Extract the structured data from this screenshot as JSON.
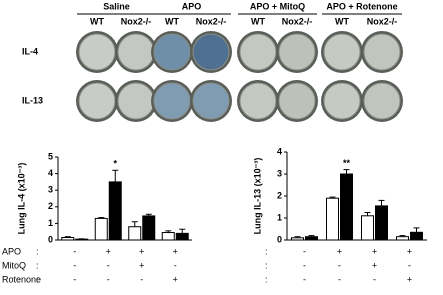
{
  "wells": {
    "groups": [
      "Saline",
      "APO",
      "APO + MitoQ",
      "APO + Rotenone"
    ],
    "genotypes": [
      "WT",
      "Nox2-/-"
    ],
    "rows": [
      "IL-4",
      "IL-13"
    ]
  },
  "chart_data": [
    {
      "type": "bar",
      "y_label": "Lung IL-4 (x10⁻³)",
      "ylim": [
        0,
        5
      ],
      "yticks": [
        0,
        1,
        2,
        3,
        4,
        5
      ],
      "series": [
        {
          "color": "#ffffff",
          "values": [
            0.15,
            1.3,
            0.8,
            0.45
          ],
          "errors": [
            0.05,
            0.05,
            0.3,
            0.1
          ]
        },
        {
          "color": "#000000",
          "values": [
            0.05,
            3.5,
            1.45,
            0.4
          ],
          "errors": [
            0.02,
            0.7,
            0.1,
            0.25
          ]
        }
      ],
      "annotations": [
        {
          "text": "*",
          "group": 1
        }
      ]
    },
    {
      "type": "bar",
      "y_label": "Lung IL-13 (x10⁻³)",
      "ylim": [
        0,
        4
      ],
      "yticks": [
        0,
        1,
        2,
        3,
        4
      ],
      "series": [
        {
          "color": "#ffffff",
          "values": [
            0.1,
            1.9,
            1.1,
            0.15
          ],
          "errors": [
            0.05,
            0.05,
            0.15,
            0.05
          ]
        },
        {
          "color": "#000000",
          "values": [
            0.15,
            3.0,
            1.55,
            0.35
          ],
          "errors": [
            0.05,
            0.2,
            0.25,
            0.2
          ]
        }
      ],
      "annotations": [
        {
          "text": "**",
          "group": 1
        }
      ]
    }
  ],
  "conditions": {
    "separator": ":",
    "rows": [
      {
        "label": "APO",
        "marks": [
          "-",
          "+",
          "+",
          "+"
        ]
      },
      {
        "label": "MitoQ",
        "marks": [
          "-",
          "-",
          "+",
          "-"
        ]
      },
      {
        "label": "Rotenone",
        "marks": [
          "-",
          "-",
          "-",
          "+"
        ]
      }
    ]
  }
}
